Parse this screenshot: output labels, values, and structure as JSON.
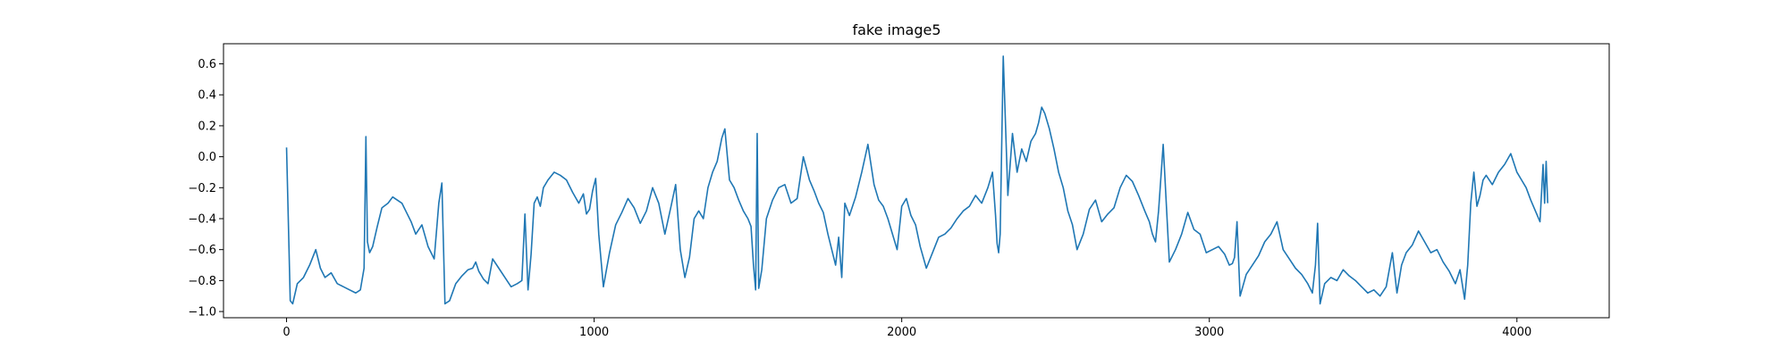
{
  "chart_data": {
    "type": "line",
    "title": "fake image5",
    "xlabel": "",
    "ylabel": "",
    "xlim": [
      -205,
      4300
    ],
    "ylim": [
      -1.04,
      0.73
    ],
    "grid": false,
    "x_ticks": [
      0,
      1000,
      2000,
      3000,
      4000
    ],
    "y_ticks": [
      -1.0,
      -0.8,
      -0.6,
      -0.4,
      -0.2,
      0.0,
      0.2,
      0.4,
      0.6
    ],
    "line_color": "#1f77b4",
    "series": [
      {
        "x": [
          0,
          5,
          12,
          20,
          35,
          55,
          75,
          95,
          110,
          125,
          145,
          165,
          185,
          205,
          225,
          240,
          252,
          258,
          263,
          270,
          280,
          295,
          310,
          330,
          345,
          360,
          375,
          390,
          405,
          420,
          440,
          460,
          480,
          495,
          505,
          515,
          530,
          550,
          570,
          590,
          605,
          615,
          625,
          640,
          655,
          670,
          690,
          710,
          730,
          750,
          765,
          775,
          785,
          795,
          805,
          815,
          825,
          835,
          850,
          870,
          890,
          910,
          930,
          950,
          965,
          975,
          985,
          995,
          1005,
          1015,
          1030,
          1050,
          1070,
          1090,
          1110,
          1130,
          1150,
          1170,
          1190,
          1210,
          1230,
          1250,
          1265,
          1280,
          1295,
          1310,
          1325,
          1340,
          1355,
          1370,
          1385,
          1400,
          1415,
          1425,
          1440,
          1455,
          1470,
          1485,
          1500,
          1510,
          1518,
          1525,
          1530,
          1535,
          1545,
          1560,
          1580,
          1600,
          1620,
          1640,
          1660,
          1680,
          1700,
          1715,
          1730,
          1745,
          1760,
          1775,
          1785,
          1795,
          1805,
          1815,
          1830,
          1850,
          1870,
          1890,
          1910,
          1925,
          1940,
          1955,
          1970,
          1985,
          2000,
          2015,
          2030,
          2045,
          2060,
          2080,
          2100,
          2120,
          2140,
          2160,
          2180,
          2200,
          2220,
          2240,
          2260,
          2280,
          2295,
          2305,
          2310,
          2315,
          2320,
          2330,
          2345,
          2360,
          2375,
          2390,
          2405,
          2420,
          2435,
          2445,
          2455,
          2465,
          2480,
          2495,
          2510,
          2525,
          2540,
          2555,
          2570,
          2590,
          2610,
          2630,
          2650,
          2670,
          2690,
          2710,
          2730,
          2750,
          2770,
          2790,
          2805,
          2815,
          2825,
          2835,
          2850,
          2870,
          2890,
          2910,
          2930,
          2950,
          2970,
          2990,
          3010,
          3030,
          3050,
          3065,
          3075,
          3082,
          3090,
          3100,
          3120,
          3140,
          3160,
          3180,
          3200,
          3220,
          3240,
          3260,
          3280,
          3300,
          3320,
          3335,
          3345,
          3352,
          3360,
          3375,
          3395,
          3415,
          3435,
          3455,
          3475,
          3495,
          3515,
          3535,
          3555,
          3575,
          3595,
          3610,
          3625,
          3640,
          3660,
          3680,
          3700,
          3720,
          3740,
          3760,
          3780,
          3800,
          3815,
          3830,
          3840,
          3850,
          3860,
          3870,
          3880,
          3890,
          3900,
          3920,
          3940,
          3960,
          3980,
          4000,
          4015,
          4030,
          4045,
          4060,
          4075,
          4085,
          4090,
          4095,
          4100
        ],
        "y": [
          0.06,
          -0.35,
          -0.93,
          -0.95,
          -0.82,
          -0.78,
          -0.7,
          -0.6,
          -0.72,
          -0.78,
          -0.75,
          -0.82,
          -0.84,
          -0.86,
          -0.88,
          -0.86,
          -0.72,
          0.13,
          -0.55,
          -0.62,
          -0.58,
          -0.45,
          -0.33,
          -0.3,
          -0.26,
          -0.28,
          -0.3,
          -0.36,
          -0.42,
          -0.5,
          -0.44,
          -0.58,
          -0.66,
          -0.3,
          -0.17,
          -0.95,
          -0.93,
          -0.82,
          -0.77,
          -0.73,
          -0.72,
          -0.68,
          -0.74,
          -0.79,
          -0.82,
          -0.66,
          -0.72,
          -0.78,
          -0.84,
          -0.82,
          -0.8,
          -0.37,
          -0.86,
          -0.63,
          -0.3,
          -0.26,
          -0.32,
          -0.2,
          -0.15,
          -0.1,
          -0.12,
          -0.15,
          -0.23,
          -0.3,
          -0.24,
          -0.37,
          -0.34,
          -0.22,
          -0.14,
          -0.5,
          -0.84,
          -0.62,
          -0.44,
          -0.36,
          -0.27,
          -0.33,
          -0.43,
          -0.35,
          -0.2,
          -0.3,
          -0.5,
          -0.32,
          -0.18,
          -0.6,
          -0.78,
          -0.65,
          -0.4,
          -0.35,
          -0.4,
          -0.2,
          -0.1,
          -0.03,
          0.12,
          0.18,
          -0.15,
          -0.2,
          -0.28,
          -0.35,
          -0.4,
          -0.45,
          -0.7,
          -0.86,
          0.15,
          -0.85,
          -0.73,
          -0.4,
          -0.28,
          -0.2,
          -0.18,
          -0.3,
          -0.27,
          0.0,
          -0.15,
          -0.22,
          -0.3,
          -0.36,
          -0.5,
          -0.62,
          -0.7,
          -0.52,
          -0.78,
          -0.3,
          -0.38,
          -0.26,
          -0.1,
          0.08,
          -0.18,
          -0.28,
          -0.32,
          -0.4,
          -0.5,
          -0.6,
          -0.32,
          -0.27,
          -0.38,
          -0.44,
          -0.58,
          -0.72,
          -0.62,
          -0.52,
          -0.5,
          -0.46,
          -0.4,
          -0.35,
          -0.32,
          -0.25,
          -0.3,
          -0.2,
          -0.1,
          -0.38,
          -0.56,
          -0.62,
          -0.5,
          0.65,
          -0.25,
          0.15,
          -0.1,
          0.05,
          -0.03,
          0.1,
          0.15,
          0.22,
          0.32,
          0.28,
          0.18,
          0.05,
          -0.1,
          -0.2,
          -0.35,
          -0.44,
          -0.6,
          -0.5,
          -0.34,
          -0.28,
          -0.42,
          -0.37,
          -0.33,
          -0.2,
          -0.12,
          -0.16,
          -0.25,
          -0.35,
          -0.42,
          -0.5,
          -0.55,
          -0.35,
          0.08,
          -0.68,
          -0.6,
          -0.5,
          -0.36,
          -0.47,
          -0.5,
          -0.62,
          -0.6,
          -0.58,
          -0.63,
          -0.7,
          -0.69,
          -0.65,
          -0.42,
          -0.9,
          -0.76,
          -0.7,
          -0.64,
          -0.55,
          -0.5,
          -0.42,
          -0.6,
          -0.66,
          -0.72,
          -0.76,
          -0.82,
          -0.88,
          -0.7,
          -0.43,
          -0.95,
          -0.82,
          -0.78,
          -0.8,
          -0.73,
          -0.77,
          -0.8,
          -0.84,
          -0.88,
          -0.86,
          -0.9,
          -0.84,
          -0.62,
          -0.88,
          -0.7,
          -0.62,
          -0.57,
          -0.48,
          -0.55,
          -0.62,
          -0.6,
          -0.68,
          -0.74,
          -0.82,
          -0.73,
          -0.92,
          -0.7,
          -0.3,
          -0.1,
          -0.32,
          -0.25,
          -0.15,
          -0.12,
          -0.18,
          -0.1,
          -0.05,
          0.02,
          -0.1,
          -0.15,
          -0.2,
          -0.28,
          -0.35,
          -0.42,
          -0.05,
          -0.3,
          -0.03,
          -0.3
        ]
      }
    ]
  }
}
